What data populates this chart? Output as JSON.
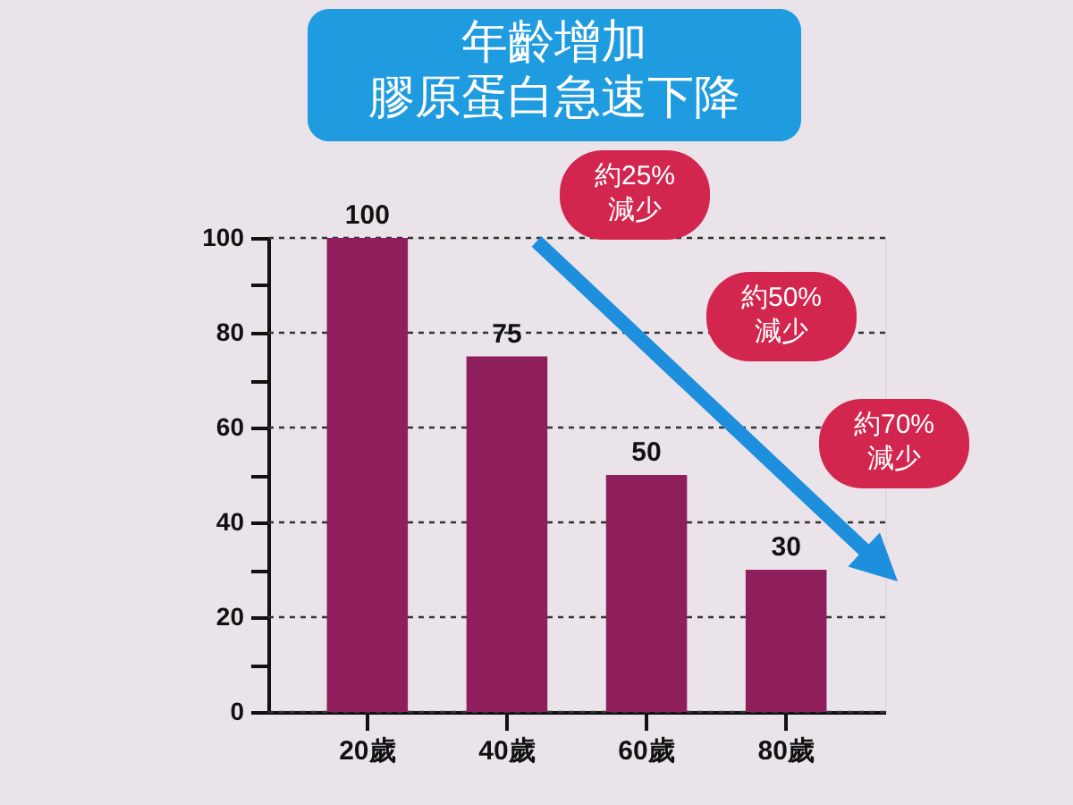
{
  "chart_data": {
    "type": "bar",
    "title": "年齡增加",
    "subtitle": "膠原蛋白急速下降",
    "categories": [
      "20歲",
      "40歲",
      "60歲",
      "80歲"
    ],
    "values": [
      100,
      75,
      50,
      30
    ],
    "color": "#8e1e5c",
    "ylim": [
      0,
      100
    ],
    "yticks": [
      0,
      {
        "value": 10,
        "label": null
      },
      20,
      {
        "value": 30,
        "label": null
      },
      40,
      {
        "value": 50,
        "label": null
      },
      60,
      {
        "value": 70,
        "label": null
      },
      80,
      {
        "value": 90,
        "label": null
      },
      100
    ],
    "grid": "y",
    "data_labels": true,
    "annotations": [
      "約25%\n減少",
      "約50%\n減少",
      "約70%\n減少"
    ]
  }
}
